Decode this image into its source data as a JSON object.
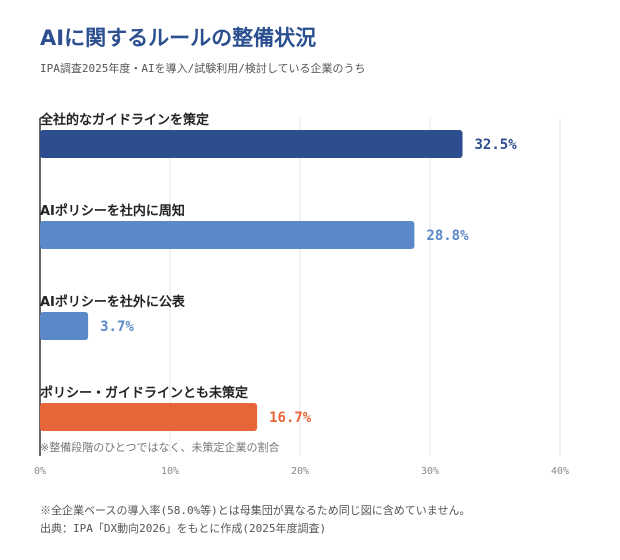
{
  "header": {
    "title": "AIに関するルールの整備状況",
    "subtitle": "IPA調査2025年度・AIを導入/試験利用/検討している企業のうち"
  },
  "chart_data": {
    "type": "bar",
    "orientation": "horizontal",
    "categories": [
      "全社的なガイドラインを策定",
      "AIポリシーを社内に周知",
      "AIポリシーを社外に公表",
      "ポリシー・ガイドラインとも未策定"
    ],
    "values": [
      32.5,
      28.8,
      3.7,
      16.7
    ],
    "value_labels": [
      "32.5%",
      "28.8%",
      "3.7%",
      "16.7%"
    ],
    "colors": [
      "#2c4d8e",
      "#5b88c9",
      "#5b88c9",
      "#e8653a"
    ],
    "xlim": [
      0,
      40
    ],
    "x_ticks": [
      "0%",
      "10%",
      "20%",
      "30%",
      "40%"
    ],
    "grid": true,
    "annotation": "※整備段階のひとつではなく、未策定企業の割合"
  },
  "footer": {
    "note": "※全企業ベースの導入率(58.0%等)とは母集団が異なるため同じ図に含めていません。",
    "source": "出典：IPA「DX動向2026」をもとに作成(2025年度調査)"
  }
}
